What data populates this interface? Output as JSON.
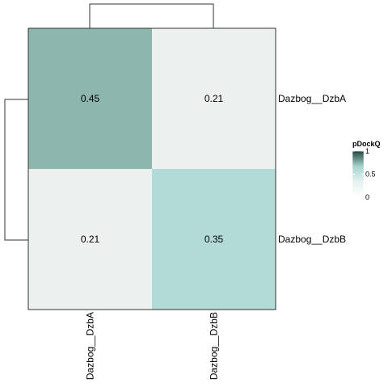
{
  "chart_data": {
    "type": "heatmap",
    "title": "",
    "rows": [
      "Dazbog__DzbA",
      "Dazbog__DzbB"
    ],
    "columns": [
      "Dazbog__DzbA",
      "Dazbog__DzbB"
    ],
    "values": [
      [
        0.45,
        0.21
      ],
      [
        0.21,
        0.35
      ]
    ],
    "cell_labels": [
      [
        "0.45",
        "0.21"
      ],
      [
        "0.21",
        "0.35"
      ]
    ],
    "cell_colors": [
      [
        "#8db7ae",
        "#ecf0ef"
      ],
      [
        "#ecf0ef",
        "#b2dad6"
      ]
    ],
    "row_dendrogram": true,
    "column_dendrogram": true,
    "legend": {
      "title": "pDockQ",
      "tick_labels": [
        "1",
        "0.5",
        "0"
      ],
      "tick_values": [
        1,
        0.5,
        0
      ],
      "range": [
        0,
        1
      ],
      "colors": [
        "#ffffff",
        "#e6f2f1",
        "#a7d5d0",
        "#264741"
      ],
      "placement": "right"
    },
    "grid": false
  }
}
